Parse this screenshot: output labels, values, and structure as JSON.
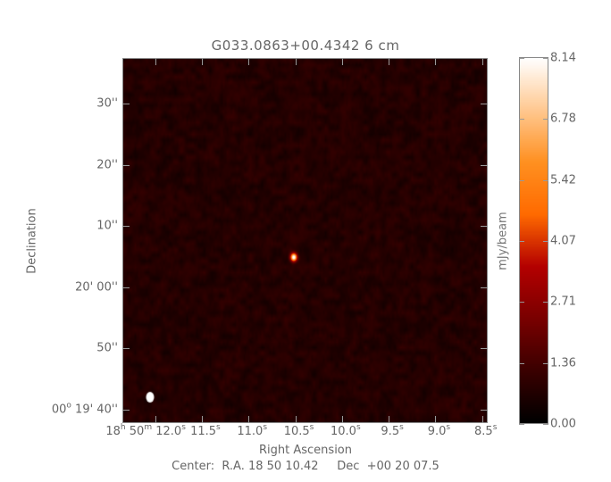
{
  "chart_data": {
    "type": "heatmap",
    "title": "G033.0863+00.4342 6 cm",
    "xlabel": "Right Ascension",
    "ylabel": "Declination",
    "center_text": "Center:  R.A. 18 50 10.42     Dec  +00 20 07.5",
    "x_axis": {
      "prefix_h": "18",
      "prefix_h_sup": "h",
      "prefix_m": "50",
      "prefix_m_sup": "m",
      "range_sec": [
        12.35,
        8.44
      ],
      "ticks": [
        {
          "sec": 12.0,
          "label": "12.0",
          "sup": "s"
        },
        {
          "sec": 11.5,
          "label": "11.5",
          "sup": "s"
        },
        {
          "sec": 11.0,
          "label": "11.0",
          "sup": "s"
        },
        {
          "sec": 10.5,
          "label": "10.5",
          "sup": "s"
        },
        {
          "sec": 10.0,
          "label": "10.0",
          "sup": "s"
        },
        {
          "sec": 9.5,
          "label": "9.5",
          "sup": "s"
        },
        {
          "sec": 9.0,
          "label": "9.0",
          "sup": "s"
        },
        {
          "sec": 8.5,
          "label": "8.5",
          "sup": "s"
        }
      ]
    },
    "y_axis": {
      "range_arcsec_from_20m": [
        -22.2,
        37.5
      ],
      "ticks": [
        {
          "offset": 30,
          "pre": "",
          "sup": "",
          "label": "30''"
        },
        {
          "offset": 20,
          "pre": "",
          "sup": "",
          "label": "20''"
        },
        {
          "offset": 10,
          "pre": "",
          "sup": "",
          "label": "10''"
        },
        {
          "offset": 0,
          "pre": "",
          "sup": "",
          "label": "20' 00''"
        },
        {
          "offset": -10,
          "pre": "",
          "sup": "",
          "label": "50''"
        },
        {
          "offset": -20,
          "pre": "00",
          "sup": "o",
          "label": " 19' 40''"
        }
      ]
    },
    "colorbar": {
      "label": "mJy/beam",
      "range": [
        0.0,
        8.14
      ],
      "ticks": [
        "0.00",
        "1.36",
        "2.71",
        "4.07",
        "5.42",
        "6.78",
        "8.14"
      ],
      "colormap": [
        "#000000",
        "#3a0000",
        "#7a0000",
        "#b40000",
        "#ff6a00",
        "#ff9020",
        "#ffc890",
        "#ffffff"
      ]
    },
    "sources": [
      {
        "ra_sec": 10.52,
        "dec_offset_arcsec": 5.0,
        "peak_mjy_beam": 8.14
      }
    ],
    "background_level_mjy_beam": 0.8,
    "beam": {
      "color": "#ffffff"
    }
  }
}
